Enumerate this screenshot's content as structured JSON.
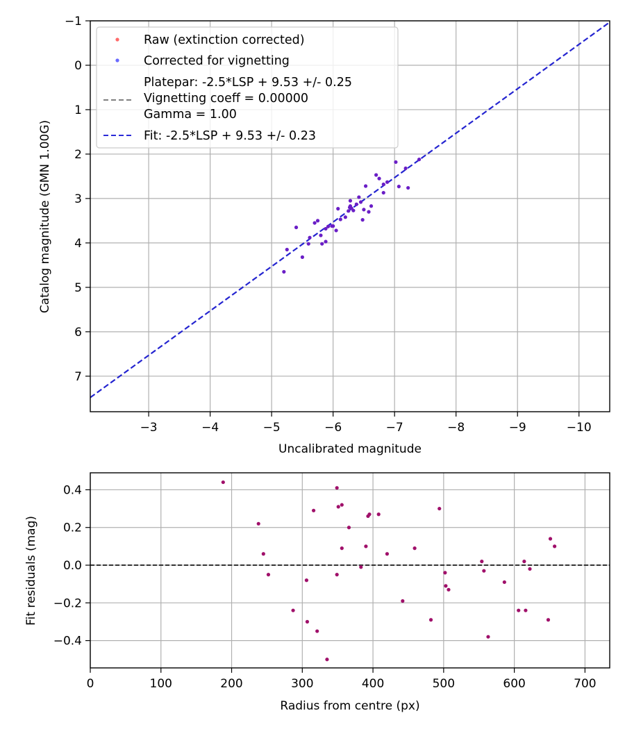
{
  "chart_data": [
    {
      "type": "scatter",
      "xlabel": "Uncalibrated magnitude",
      "ylabel": "Catalog magnitude (GMN 1.00G)",
      "xlim": [
        -2.05,
        -10.5
      ],
      "ylim": [
        7.8,
        -1.0
      ],
      "x_ticks": [
        -3,
        -4,
        -5,
        -6,
        -7,
        -8,
        -9,
        -10
      ],
      "x_tick_labels": [
        "−3",
        "−4",
        "−5",
        "−6",
        "−7",
        "−8",
        "−9",
        "−10"
      ],
      "y_ticks": [
        -1,
        0,
        1,
        2,
        3,
        4,
        5,
        6,
        7
      ],
      "y_tick_labels": [
        "−1",
        "0",
        "1",
        "2",
        "3",
        "4",
        "5",
        "6",
        "7"
      ],
      "grid": true,
      "legend_position": "upper-left",
      "legend": [
        {
          "label": "Raw (extinction corrected)",
          "style": "dot",
          "color": "#ff6a6a"
        },
        {
          "label": "Corrected for vignetting",
          "style": "dot",
          "color": "#6a6aff"
        },
        {
          "lines": [
            "Platepar: -2.5*LSP + 9.53 +/- 0.25",
            "Vignetting coeff = 0.00000",
            "Gamma = 1.00"
          ],
          "style": "dash",
          "color": "#808080"
        },
        {
          "label": "Fit: -2.5*LSP + 9.53 +/- 0.23",
          "style": "dash",
          "color": "#2a2ad8"
        }
      ],
      "fit_line": {
        "slope": 1,
        "intercept": 9.53
      },
      "point_color": "#6a1ec6",
      "points": [
        [
          -5.2,
          4.65
        ],
        [
          -5.25,
          4.15
        ],
        [
          -5.4,
          3.65
        ],
        [
          -5.5,
          4.32
        ],
        [
          -5.6,
          4.02
        ],
        [
          -5.62,
          3.88
        ],
        [
          -5.7,
          3.55
        ],
        [
          -5.75,
          3.5
        ],
        [
          -5.8,
          3.83
        ],
        [
          -5.82,
          4.02
        ],
        [
          -5.88,
          3.97
        ],
        [
          -5.88,
          3.68
        ],
        [
          -5.92,
          3.63
        ],
        [
          -5.98,
          3.62
        ],
        [
          -6.0,
          3.62
        ],
        [
          -6.05,
          3.72
        ],
        [
          -6.08,
          3.23
        ],
        [
          -6.12,
          3.47
        ],
        [
          -6.2,
          3.42
        ],
        [
          -6.25,
          3.28
        ],
        [
          -6.27,
          3.2
        ],
        [
          -6.28,
          3.17
        ],
        [
          -6.28,
          3.05
        ],
        [
          -6.3,
          3.22
        ],
        [
          -6.33,
          3.27
        ],
        [
          -6.38,
          3.13
        ],
        [
          -6.42,
          2.97
        ],
        [
          -6.45,
          3.08
        ],
        [
          -6.48,
          3.48
        ],
        [
          -6.5,
          3.25
        ],
        [
          -6.53,
          2.72
        ],
        [
          -6.58,
          3.3
        ],
        [
          -6.62,
          3.17
        ],
        [
          -6.7,
          2.47
        ],
        [
          -6.75,
          2.55
        ],
        [
          -6.82,
          2.68
        ],
        [
          -6.82,
          2.87
        ],
        [
          -6.88,
          2.63
        ],
        [
          -7.02,
          2.18
        ],
        [
          -7.07,
          2.73
        ],
        [
          -7.18,
          2.32
        ],
        [
          -7.22,
          2.76
        ],
        [
          -7.4,
          2.12
        ]
      ]
    },
    {
      "type": "scatter",
      "xlabel": "Radius from centre (px)",
      "ylabel": "Fit residuals (mag)",
      "xlim": [
        0,
        735
      ],
      "ylim": [
        -0.545,
        0.49
      ],
      "x_ticks": [
        0,
        100,
        200,
        300,
        400,
        500,
        600,
        700
      ],
      "x_tick_labels": [
        "0",
        "100",
        "200",
        "300",
        "400",
        "500",
        "600",
        "700"
      ],
      "y_ticks": [
        -0.4,
        -0.2,
        0.0,
        0.2,
        0.4
      ],
      "y_tick_labels": [
        "−0.4",
        "−0.2",
        "0.0",
        "0.2",
        "0.4"
      ],
      "grid": true,
      "zero_line": 0,
      "point_color": "#a0106a",
      "points": [
        [
          188,
          0.44
        ],
        [
          238,
          0.22
        ],
        [
          245,
          0.06
        ],
        [
          252,
          -0.05
        ],
        [
          287,
          -0.24
        ],
        [
          306,
          -0.08
        ],
        [
          307,
          -0.3
        ],
        [
          316,
          0.29
        ],
        [
          321,
          -0.35
        ],
        [
          335,
          -0.5
        ],
        [
          349,
          -0.05
        ],
        [
          349,
          0.41
        ],
        [
          351,
          0.31
        ],
        [
          356,
          0.32
        ],
        [
          356,
          0.09
        ],
        [
          366,
          0.2
        ],
        [
          383,
          -0.01
        ],
        [
          390,
          0.1
        ],
        [
          393,
          0.26
        ],
        [
          395,
          0.27
        ],
        [
          408,
          0.27
        ],
        [
          420,
          0.06
        ],
        [
          442,
          -0.19
        ],
        [
          459,
          0.09
        ],
        [
          482,
          -0.29
        ],
        [
          494,
          0.3
        ],
        [
          502,
          -0.04
        ],
        [
          503,
          -0.11
        ],
        [
          507,
          -0.13
        ],
        [
          554,
          0.02
        ],
        [
          557,
          -0.03
        ],
        [
          563,
          -0.38
        ],
        [
          586,
          -0.09
        ],
        [
          606,
          -0.24
        ],
        [
          614,
          0.02
        ],
        [
          616,
          -0.24
        ],
        [
          622,
          -0.02
        ],
        [
          648,
          -0.29
        ],
        [
          651,
          0.14
        ],
        [
          657,
          0.1
        ]
      ]
    }
  ]
}
